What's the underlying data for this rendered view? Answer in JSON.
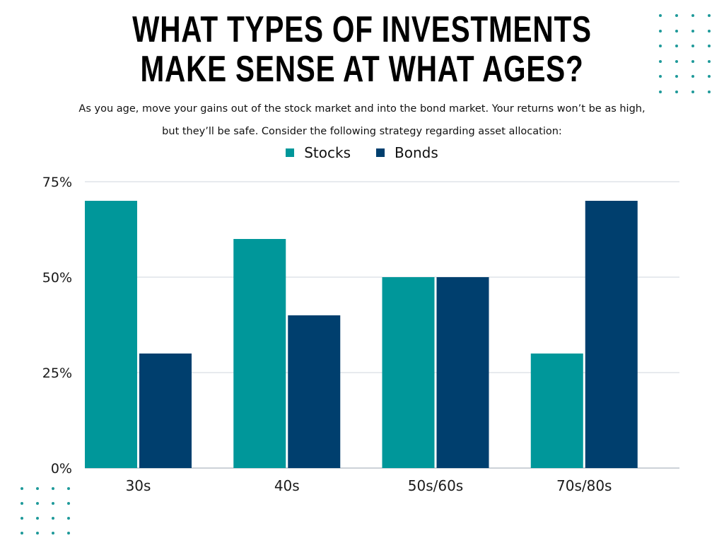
{
  "colors": {
    "stocks": "#00979A",
    "bonds": "#003F6E",
    "dots": "#1f9a9a"
  },
  "header": {
    "title_line1": "WHAT TYPES OF INVESTMENTS",
    "title_line2": "MAKE SENSE AT WHAT AGES?",
    "subtitle": "As you age, move your gains out of the stock market and into the bond market. Your returns won’t be as high, but they’ll be safe. Consider the following strategy regarding asset allocation:"
  },
  "legend": {
    "position": "top",
    "items": [
      "Stocks",
      "Bonds"
    ]
  },
  "chart_data": {
    "type": "bar",
    "categories": [
      "30s",
      "40s",
      "50s/60s",
      "70s/80s"
    ],
    "series": [
      {
        "name": "Stocks",
        "values": [
          70,
          60,
          50,
          30
        ]
      },
      {
        "name": "Bonds",
        "values": [
          30,
          40,
          50,
          70
        ]
      }
    ],
    "ylim": [
      0,
      75
    ],
    "yticks": [
      0,
      25,
      50,
      75
    ],
    "ytick_labels": [
      "0%",
      "25%",
      "50%",
      "75%"
    ],
    "grid": true
  }
}
